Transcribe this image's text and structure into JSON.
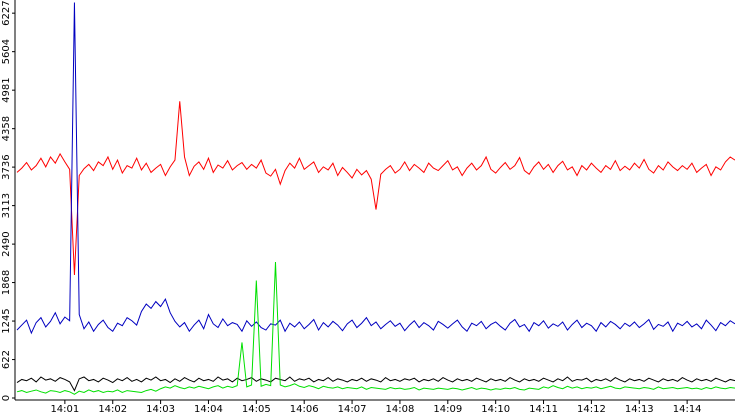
{
  "chart_data": {
    "type": "line",
    "x": [
      0,
      0.1,
      0.2,
      0.3,
      0.4,
      0.5,
      0.6,
      0.7,
      0.8,
      0.9,
      1,
      1.1,
      1.2,
      1.3,
      1.4,
      1.5,
      1.6,
      1.7,
      1.8,
      1.9,
      2,
      2.1,
      2.2,
      2.3,
      2.4,
      2.5,
      2.6,
      2.7,
      2.8,
      2.9,
      3,
      3.1,
      3.2,
      3.3,
      3.4,
      3.5,
      3.6,
      3.7,
      3.8,
      3.9,
      4,
      4.1,
      4.2,
      4.3,
      4.4,
      4.5,
      4.6,
      4.7,
      4.8,
      4.9,
      5,
      5.1,
      5.2,
      5.3,
      5.4,
      5.5,
      5.6,
      5.7,
      5.8,
      5.9,
      6,
      6.1,
      6.2,
      6.3,
      6.4,
      6.5,
      6.6,
      6.7,
      6.8,
      6.9,
      7,
      7.1,
      7.2,
      7.3,
      7.4,
      7.5,
      7.6,
      7.7,
      7.8,
      7.9,
      8,
      8.1,
      8.2,
      8.3,
      8.4,
      8.5,
      8.6,
      8.7,
      8.8,
      8.9,
      9,
      9.1,
      9.2,
      9.3,
      9.4,
      9.5,
      9.6,
      9.7,
      9.8,
      9.9,
      10,
      10.1,
      10.2,
      10.3,
      10.4,
      10.5,
      10.6,
      10.7,
      10.8,
      10.9,
      11,
      11.1,
      11.2,
      11.3,
      11.4,
      11.5,
      11.6,
      11.7,
      11.8,
      11.9,
      12,
      12.1,
      12.2,
      12.3,
      12.4,
      12.5,
      12.6,
      12.7,
      12.8,
      12.9,
      13,
      13.1,
      13.2,
      13.3,
      13.4,
      13.5,
      13.6,
      13.7,
      13.8,
      13.9,
      14,
      14.1,
      14.2,
      14.3,
      14.4,
      14.5,
      14.6,
      14.7,
      14.8,
      14.9,
      15
    ],
    "series": [
      {
        "color": "#ff0000",
        "values": [
          3650,
          3720,
          3810,
          3690,
          3760,
          3880,
          3740,
          3900,
          3800,
          3950,
          3820,
          3700,
          1990,
          3600,
          3710,
          3780,
          3680,
          3820,
          3760,
          3900,
          3700,
          3850,
          3640,
          3760,
          3720,
          3880,
          3690,
          3800,
          3650,
          3720,
          3780,
          3600,
          3740,
          3850,
          4800,
          3900,
          3600,
          3750,
          3820,
          3700,
          3880,
          3650,
          3770,
          3720,
          3840,
          3690,
          3760,
          3810,
          3700,
          3780,
          3720,
          3850,
          3640,
          3590,
          3700,
          3460,
          3680,
          3800,
          3720,
          3880,
          3700,
          3760,
          3820,
          3650,
          3740,
          3690,
          3800,
          3600,
          3730,
          3650,
          3560,
          3700,
          3610,
          3680,
          3540,
          3050,
          3620,
          3700,
          3760,
          3640,
          3700,
          3820,
          3680,
          3780,
          3720,
          3650,
          3800,
          3720,
          3680,
          3760,
          3840,
          3690,
          3740,
          3600,
          3720,
          3800,
          3690,
          3760,
          3900,
          3700,
          3640,
          3730,
          3810,
          3700,
          3760,
          3890,
          3680,
          3620,
          3740,
          3820,
          3700,
          3780,
          3650,
          3760,
          3830,
          3690,
          3740,
          3600,
          3760,
          3690,
          3800,
          3720,
          3650,
          3760,
          3700,
          3840,
          3680,
          3750,
          3690,
          3800,
          3720,
          3860,
          3700,
          3640,
          3760,
          3690,
          3820,
          3740,
          3680,
          3760,
          3700,
          3800,
          3650,
          3720,
          3780,
          3600,
          3740,
          3690,
          3820,
          3900,
          3850
        ]
      },
      {
        "color": "#0000c0",
        "values": [
          1100,
          1180,
          1260,
          1050,
          1220,
          1300,
          1150,
          1240,
          1380,
          1200,
          1310,
          1250,
          6400,
          1350,
          1120,
          1230,
          1080,
          1190,
          1260,
          1140,
          1080,
          1210,
          1170,
          1300,
          1250,
          1180,
          1400,
          1520,
          1450,
          1560,
          1480,
          1600,
          1380,
          1240,
          1150,
          1220,
          1080,
          1180,
          1260,
          1120,
          1350,
          1200,
          1140,
          1280,
          1170,
          1220,
          1190,
          1080,
          1250,
          1160,
          1230,
          1140,
          1100,
          1200,
          1180,
          1260,
          1080,
          1210,
          1150,
          1230,
          1120,
          1190,
          1270,
          1100,
          1220,
          1150,
          1240,
          1180,
          1090,
          1200,
          1260,
          1140,
          1210,
          1300,
          1170,
          1230,
          1120,
          1190,
          1250,
          1160,
          1210,
          1090,
          1180,
          1250,
          1140,
          1220,
          1170,
          1100,
          1240,
          1190,
          1130,
          1200,
          1260,
          1150,
          1080,
          1210,
          1170,
          1240,
          1120,
          1190,
          1230,
          1160,
          1100,
          1210,
          1270,
          1150,
          1190,
          1080,
          1220,
          1170,
          1250,
          1130,
          1200,
          1160,
          1230,
          1100,
          1190,
          1260,
          1140,
          1210,
          1170,
          1080,
          1220,
          1150,
          1240,
          1190,
          1120,
          1210,
          1160,
          1230,
          1140,
          1200,
          1270,
          1110,
          1190,
          1160,
          1230,
          1080,
          1210,
          1170,
          1240,
          1150,
          1200,
          1120,
          1260,
          1180,
          1090,
          1220,
          1170,
          1250,
          1200
        ]
      },
      {
        "color": "#000000",
        "values": [
          250,
          300,
          280,
          320,
          260,
          340,
          290,
          310,
          270,
          330,
          300,
          260,
          120,
          310,
          340,
          280,
          300,
          260,
          320,
          290,
          250,
          310,
          280,
          330,
          270,
          300,
          260,
          320,
          290,
          340,
          280,
          300,
          250,
          310,
          270,
          330,
          290,
          260,
          320,
          280,
          300,
          270,
          340,
          290,
          310,
          260,
          320,
          280,
          300,
          330,
          270,
          310,
          290,
          260,
          320,
          300,
          280,
          340,
          270,
          310,
          290,
          320,
          260,
          300,
          280,
          330,
          270,
          310,
          290,
          260,
          300,
          280,
          320,
          270,
          310,
          290,
          260,
          330,
          280,
          300,
          270,
          310,
          290,
          320,
          260,
          300,
          280,
          310,
          270,
          330,
          290,
          260,
          310,
          280,
          300,
          270,
          320,
          290,
          260,
          310,
          280,
          300,
          270,
          330,
          290,
          260,
          310,
          280,
          300,
          270,
          320,
          290,
          260,
          310,
          280,
          340,
          270,
          300,
          290,
          320,
          260,
          300,
          280,
          310,
          270,
          330,
          290,
          260,
          310,
          280,
          300,
          270,
          320,
          290,
          260,
          310,
          280,
          300,
          270,
          330,
          290,
          260,
          310,
          280,
          300,
          270,
          320,
          290,
          260,
          300,
          280
        ]
      },
      {
        "color": "#00e000",
        "values": [
          100,
          120,
          90,
          110,
          130,
          100,
          80,
          120,
          110,
          90,
          120,
          100,
          60,
          110,
          90,
          130,
          100,
          120,
          90,
          110,
          100,
          130,
          90,
          120,
          110,
          100,
          90,
          120,
          140,
          110,
          150,
          180,
          160,
          200,
          170,
          150,
          180,
          160,
          190,
          170,
          150,
          180,
          200,
          160,
          190,
          170,
          200,
          900,
          180,
          210,
          1900,
          190,
          220,
          200,
          2200,
          210,
          180,
          200,
          230,
          190,
          170,
          200,
          180,
          150,
          190,
          170,
          160,
          180,
          150,
          170,
          160,
          150,
          180,
          140,
          170,
          160,
          150,
          140,
          170,
          150,
          160,
          140,
          150,
          170,
          130,
          160,
          150,
          140,
          160,
          150,
          140,
          160,
          150,
          130,
          150,
          170,
          140,
          160,
          150,
          130,
          150,
          140,
          160,
          150,
          170,
          140,
          130,
          160,
          150,
          140,
          180,
          160,
          200,
          170,
          150,
          190,
          160,
          180,
          150,
          170,
          160,
          180,
          150,
          170,
          190,
          160,
          150,
          180,
          170,
          160,
          150,
          170,
          160,
          140,
          180,
          150,
          160,
          170,
          150,
          160,
          170,
          150,
          160,
          140,
          170,
          150,
          180,
          160,
          150,
          170,
          160
        ]
      }
    ],
    "xlim": [
      0,
      15
    ],
    "xticks": [
      {
        "value": 1,
        "label": "14:01"
      },
      {
        "value": 2,
        "label": "14:02"
      },
      {
        "value": 3,
        "label": "14:03"
      },
      {
        "value": 4,
        "label": "14:04"
      },
      {
        "value": 5,
        "label": "14:05"
      },
      {
        "value": 6,
        "label": "14:06"
      },
      {
        "value": 7,
        "label": "14:07"
      },
      {
        "value": 8,
        "label": "14:08"
      },
      {
        "value": 9,
        "label": "14:09"
      },
      {
        "value": 10,
        "label": "14:10"
      },
      {
        "value": 11,
        "label": "14:11"
      },
      {
        "value": 12,
        "label": "14:12"
      },
      {
        "value": 13,
        "label": "14:13"
      },
      {
        "value": 14,
        "label": "14:14"
      }
    ],
    "ylim": [
      0,
      6440
    ],
    "yticks": [
      0,
      622,
      1245,
      1868,
      2490,
      3113,
      3736,
      4358,
      4981,
      5604,
      6227
    ]
  }
}
